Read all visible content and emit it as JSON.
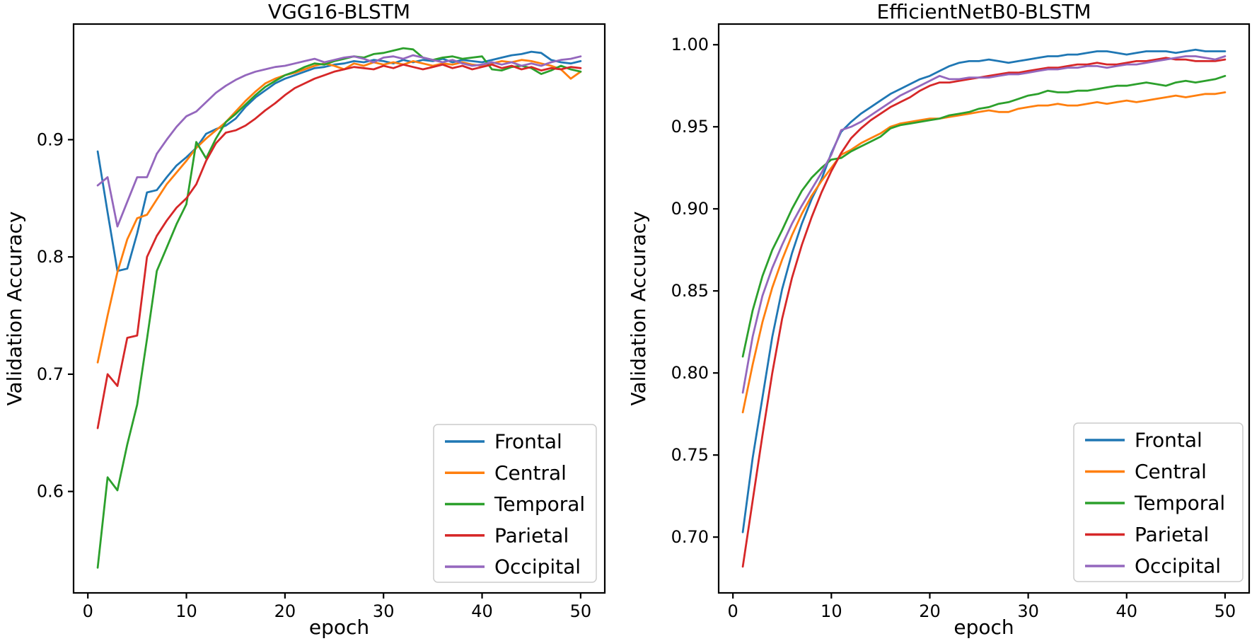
{
  "figure": {
    "background": "#ffffff",
    "text_color": "#000000",
    "spine_color": "#000000",
    "legend_border_color": "#cccccc",
    "legend_background": "#ffffff"
  },
  "chart_data": [
    {
      "type": "line",
      "title": "VGG16-BLSTM",
      "xlabel": "epoch",
      "ylabel": "Validation Accuracy",
      "grid": false,
      "legend_position": "lower right",
      "xlim": [
        -1.45,
        52.45
      ],
      "ylim": [
        0.5135,
        0.9986
      ],
      "xticks": {
        "values": [
          0,
          10,
          20,
          30,
          40,
          50
        ],
        "labels": [
          "0",
          "10",
          "20",
          "30",
          "40",
          "50"
        ]
      },
      "yticks": {
        "values": [
          0.6,
          0.7,
          0.8,
          0.9
        ],
        "labels": [
          "0.6",
          "0.7",
          "0.8",
          "0.9"
        ]
      },
      "x": [
        1,
        2,
        3,
        4,
        5,
        6,
        7,
        8,
        9,
        10,
        11,
        12,
        13,
        14,
        15,
        16,
        17,
        18,
        19,
        20,
        21,
        22,
        23,
        24,
        25,
        26,
        27,
        28,
        29,
        30,
        31,
        32,
        33,
        34,
        35,
        36,
        37,
        38,
        39,
        40,
        41,
        42,
        43,
        44,
        45,
        46,
        47,
        48,
        49,
        50
      ],
      "series": [
        {
          "name": "Frontal",
          "color": "#1f77b4",
          "values": [
            0.89,
            0.838,
            0.788,
            0.79,
            0.82,
            0.855,
            0.857,
            0.868,
            0.878,
            0.885,
            0.893,
            0.905,
            0.909,
            0.912,
            0.918,
            0.928,
            0.936,
            0.942,
            0.948,
            0.952,
            0.955,
            0.958,
            0.961,
            0.962,
            0.964,
            0.965,
            0.967,
            0.966,
            0.968,
            0.967,
            0.965,
            0.968,
            0.966,
            0.968,
            0.967,
            0.969,
            0.966,
            0.968,
            0.967,
            0.966,
            0.968,
            0.97,
            0.972,
            0.973,
            0.975,
            0.974,
            0.968,
            0.966,
            0.965,
            0.967
          ]
        },
        {
          "name": "Central",
          "color": "#ff7f0e",
          "values": [
            0.71,
            0.75,
            0.787,
            0.815,
            0.833,
            0.836,
            0.849,
            0.862,
            0.872,
            0.882,
            0.893,
            0.901,
            0.908,
            0.915,
            0.924,
            0.933,
            0.941,
            0.948,
            0.952,
            0.955,
            0.957,
            0.96,
            0.963,
            0.965,
            0.963,
            0.96,
            0.965,
            0.963,
            0.966,
            0.964,
            0.966,
            0.964,
            0.967,
            0.965,
            0.963,
            0.965,
            0.964,
            0.966,
            0.964,
            0.963,
            0.965,
            0.967,
            0.966,
            0.968,
            0.967,
            0.965,
            0.963,
            0.96,
            0.952,
            0.958
          ]
        },
        {
          "name": "Temporal",
          "color": "#2ca02c",
          "values": [
            0.535,
            0.612,
            0.601,
            0.64,
            0.674,
            0.73,
            0.788,
            0.808,
            0.828,
            0.845,
            0.898,
            0.884,
            0.901,
            0.915,
            0.922,
            0.93,
            0.938,
            0.945,
            0.95,
            0.955,
            0.958,
            0.962,
            0.965,
            0.964,
            0.967,
            0.969,
            0.971,
            0.97,
            0.973,
            0.974,
            0.976,
            0.978,
            0.977,
            0.97,
            0.968,
            0.97,
            0.971,
            0.969,
            0.97,
            0.971,
            0.96,
            0.959,
            0.962,
            0.963,
            0.961,
            0.956,
            0.959,
            0.963,
            0.96,
            0.958
          ]
        },
        {
          "name": "Parietal",
          "color": "#d62728",
          "values": [
            0.654,
            0.7,
            0.69,
            0.731,
            0.733,
            0.8,
            0.818,
            0.831,
            0.842,
            0.85,
            0.862,
            0.882,
            0.897,
            0.906,
            0.908,
            0.912,
            0.918,
            0.925,
            0.931,
            0.938,
            0.944,
            0.948,
            0.952,
            0.955,
            0.958,
            0.96,
            0.962,
            0.961,
            0.96,
            0.963,
            0.961,
            0.964,
            0.962,
            0.96,
            0.962,
            0.964,
            0.961,
            0.963,
            0.96,
            0.962,
            0.964,
            0.961,
            0.963,
            0.96,
            0.962,
            0.959,
            0.961,
            0.96,
            0.962,
            0.961
          ]
        },
        {
          "name": "Occipital",
          "color": "#9467bd",
          "values": [
            0.861,
            0.868,
            0.826,
            0.847,
            0.868,
            0.868,
            0.888,
            0.9,
            0.911,
            0.92,
            0.924,
            0.932,
            0.94,
            0.946,
            0.951,
            0.955,
            0.958,
            0.96,
            0.962,
            0.963,
            0.965,
            0.967,
            0.969,
            0.966,
            0.968,
            0.97,
            0.971,
            0.969,
            0.966,
            0.97,
            0.971,
            0.969,
            0.972,
            0.97,
            0.968,
            0.966,
            0.968,
            0.965,
            0.963,
            0.964,
            0.966,
            0.964,
            0.966,
            0.963,
            0.965,
            0.963,
            0.966,
            0.968,
            0.969,
            0.971
          ]
        }
      ]
    },
    {
      "type": "line",
      "title": "EfficientNetB0-BLSTM",
      "xlabel": "epoch",
      "ylabel": "Validation Accuracy",
      "grid": false,
      "legend_position": "lower right",
      "xlim": [
        -1.45,
        52.45
      ],
      "ylim": [
        0.666,
        1.0126
      ],
      "xticks": {
        "values": [
          0,
          10,
          20,
          30,
          40,
          50
        ],
        "labels": [
          "0",
          "10",
          "20",
          "30",
          "40",
          "50"
        ]
      },
      "yticks": {
        "values": [
          0.7,
          0.75,
          0.8,
          0.85,
          0.9,
          0.95,
          1.0
        ],
        "labels": [
          "0.70",
          "0.75",
          "0.80",
          "0.85",
          "0.90",
          "0.95",
          "1.00"
        ]
      },
      "x": [
        1,
        2,
        3,
        4,
        5,
        6,
        7,
        8,
        9,
        10,
        11,
        12,
        13,
        14,
        15,
        16,
        17,
        18,
        19,
        20,
        21,
        22,
        23,
        24,
        25,
        26,
        27,
        28,
        29,
        30,
        31,
        32,
        33,
        34,
        35,
        36,
        37,
        38,
        39,
        40,
        41,
        42,
        43,
        44,
        45,
        46,
        47,
        48,
        49,
        50
      ],
      "series": [
        {
          "name": "Frontal",
          "color": "#1f77b4",
          "values": [
            0.703,
            0.748,
            0.785,
            0.822,
            0.851,
            0.873,
            0.891,
            0.906,
            0.918,
            0.934,
            0.947,
            0.953,
            0.958,
            0.962,
            0.966,
            0.97,
            0.973,
            0.976,
            0.979,
            0.981,
            0.984,
            0.987,
            0.989,
            0.99,
            0.99,
            0.991,
            0.99,
            0.989,
            0.99,
            0.991,
            0.992,
            0.993,
            0.993,
            0.994,
            0.994,
            0.995,
            0.996,
            0.996,
            0.995,
            0.994,
            0.995,
            0.996,
            0.996,
            0.996,
            0.995,
            0.996,
            0.997,
            0.996,
            0.996,
            0.996
          ]
        },
        {
          "name": "Central",
          "color": "#ff7f0e",
          "values": [
            0.776,
            0.805,
            0.831,
            0.852,
            0.869,
            0.884,
            0.897,
            0.908,
            0.917,
            0.925,
            0.933,
            0.936,
            0.94,
            0.943,
            0.946,
            0.95,
            0.952,
            0.953,
            0.954,
            0.955,
            0.955,
            0.956,
            0.957,
            0.958,
            0.959,
            0.96,
            0.959,
            0.959,
            0.961,
            0.962,
            0.963,
            0.963,
            0.964,
            0.963,
            0.963,
            0.964,
            0.965,
            0.964,
            0.965,
            0.966,
            0.965,
            0.966,
            0.967,
            0.968,
            0.969,
            0.968,
            0.969,
            0.97,
            0.97,
            0.971
          ]
        },
        {
          "name": "Temporal",
          "color": "#2ca02c",
          "values": [
            0.81,
            0.838,
            0.859,
            0.875,
            0.887,
            0.9,
            0.911,
            0.919,
            0.925,
            0.93,
            0.931,
            0.935,
            0.938,
            0.941,
            0.944,
            0.949,
            0.951,
            0.952,
            0.953,
            0.954,
            0.955,
            0.957,
            0.958,
            0.959,
            0.961,
            0.962,
            0.964,
            0.965,
            0.967,
            0.969,
            0.97,
            0.972,
            0.971,
            0.971,
            0.972,
            0.972,
            0.973,
            0.974,
            0.975,
            0.975,
            0.976,
            0.977,
            0.976,
            0.975,
            0.977,
            0.978,
            0.977,
            0.978,
            0.979,
            0.981
          ]
        },
        {
          "name": "Parietal",
          "color": "#d62728",
          "values": [
            0.682,
            0.722,
            0.762,
            0.8,
            0.833,
            0.858,
            0.878,
            0.895,
            0.91,
            0.923,
            0.934,
            0.943,
            0.949,
            0.954,
            0.958,
            0.962,
            0.965,
            0.968,
            0.972,
            0.975,
            0.977,
            0.977,
            0.978,
            0.979,
            0.98,
            0.981,
            0.982,
            0.983,
            0.983,
            0.984,
            0.985,
            0.986,
            0.986,
            0.987,
            0.988,
            0.988,
            0.989,
            0.988,
            0.988,
            0.989,
            0.99,
            0.99,
            0.991,
            0.992,
            0.991,
            0.991,
            0.99,
            0.99,
            0.99,
            0.991
          ]
        },
        {
          "name": "Occipital",
          "color": "#9467bd",
          "values": [
            0.788,
            0.822,
            0.847,
            0.864,
            0.878,
            0.891,
            0.902,
            0.912,
            0.922,
            0.933,
            0.948,
            0.95,
            0.953,
            0.957,
            0.961,
            0.965,
            0.969,
            0.972,
            0.975,
            0.978,
            0.981,
            0.979,
            0.979,
            0.98,
            0.98,
            0.98,
            0.981,
            0.982,
            0.982,
            0.983,
            0.984,
            0.985,
            0.985,
            0.986,
            0.986,
            0.987,
            0.987,
            0.986,
            0.987,
            0.988,
            0.988,
            0.989,
            0.99,
            0.991,
            0.992,
            0.993,
            0.993,
            0.992,
            0.991,
            0.993
          ]
        }
      ]
    }
  ]
}
